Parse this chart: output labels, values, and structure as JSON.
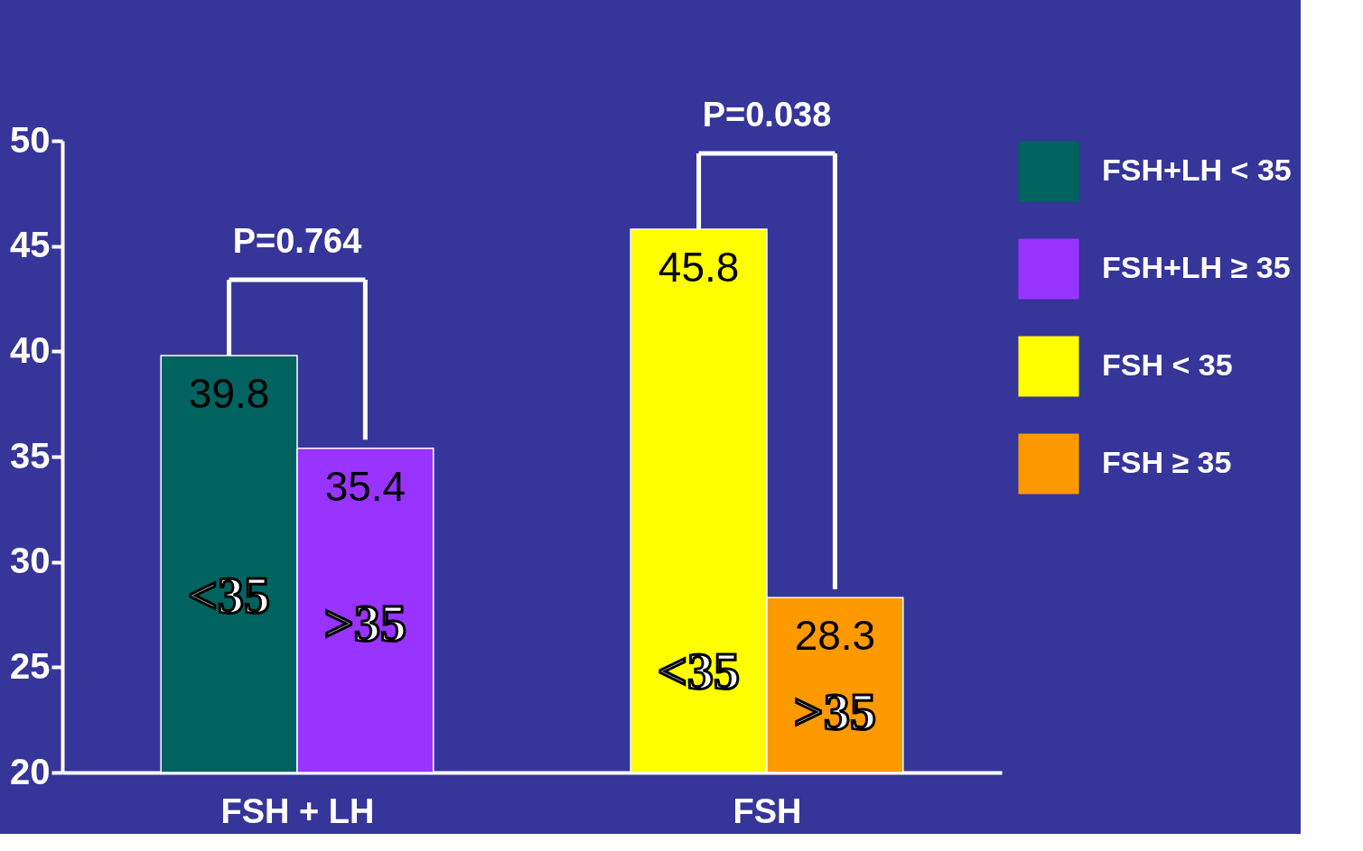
{
  "chart_data": {
    "type": "bar",
    "categories": [
      "FSH + LH",
      "FSH"
    ],
    "series": [
      {
        "name": "FSH+LH < 35",
        "color": "#00635f",
        "values": [
          39.8,
          null
        ]
      },
      {
        "name": "FSH+LH ≥ 35",
        "color": "#9933ff",
        "values": [
          35.4,
          null
        ]
      },
      {
        "name": "FSH < 35",
        "color": "#ffff00",
        "values": [
          null,
          45.8
        ]
      },
      {
        "name": "FSH ≥ 35",
        "color": "#ff9900",
        "values": [
          null,
          28.3
        ]
      }
    ],
    "ylim": [
      20,
      50
    ],
    "yticks": [
      20,
      25,
      30,
      35,
      40,
      45,
      50
    ],
    "grid": false,
    "legend": "top right",
    "data_labels": true,
    "annotations": [
      {
        "text": "P=0.764",
        "x": "FSH + LH",
        "y": 39.8
      },
      {
        "text": "P=0.038",
        "x": "FSH",
        "y": 45.8
      },
      {
        "text": "<35",
        "x": "FSH + LH",
        "y": 28.3
      },
      {
        "text": ">35",
        "x": "FSH + LH",
        "y": 27
      },
      {
        "text": "<35",
        "x": "FSH",
        "y": 24.7
      },
      {
        "text": ">35",
        "x": "FSH",
        "y": 22.8
      }
    ]
  }
}
